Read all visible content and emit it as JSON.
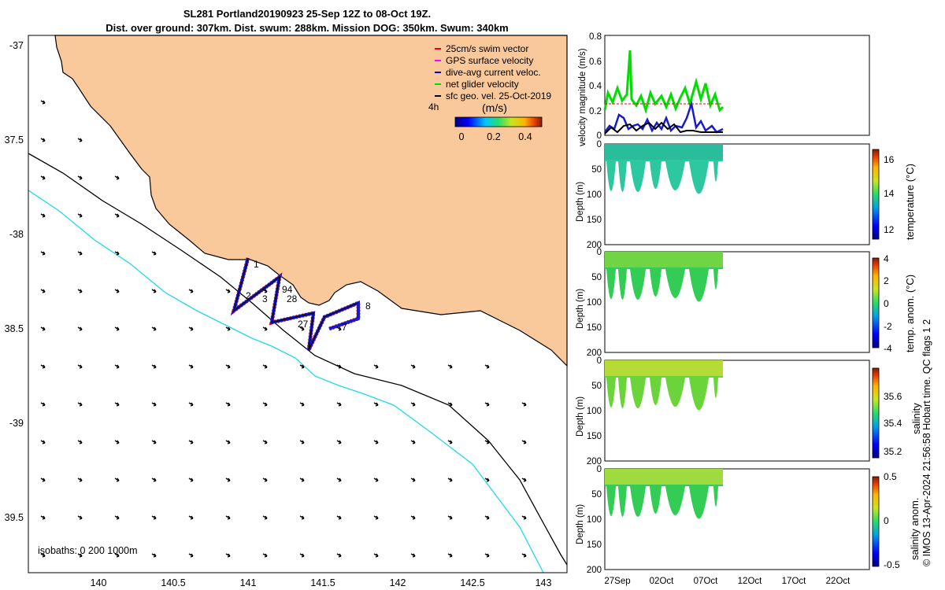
{
  "title": {
    "line1": "SL281 Portland20190923 25-Sep 12Z to 08-Oct 19Z.",
    "line2": "Dist. over ground: 307km. Dist. swum: 288km. Mission DOG: 350km. Swum: 340km"
  },
  "map": {
    "lat_ticks": [
      "-37",
      "37.5",
      "-38",
      "38.5",
      "-39",
      "39.5"
    ],
    "lon_ticks": [
      "140",
      "140.5",
      "141",
      "141.5",
      "142",
      "142.5",
      "143"
    ],
    "isobaths_label": "isobaths: 0   200  1000m",
    "legend": [
      {
        "label": "25cm/s swim vector",
        "color": "#e8000b"
      },
      {
        "label": "GPS surface velocity",
        "color": "#ff00ff"
      },
      {
        "label": "dive-avg current veloc.",
        "color": "#0000cc"
      },
      {
        "label": "net glider velocity",
        "color": "#00dd00"
      },
      {
        "label": "sfc geo. vel. 25-Oct-2019",
        "color": "#000000"
      }
    ],
    "colorbar": {
      "prefix": "4h",
      "units": "(m/s)",
      "ticks": [
        "0",
        "0.2",
        "0.4"
      ]
    },
    "track_labels": [
      "1",
      "2",
      "3",
      "94",
      "28",
      "27",
      "7",
      "8"
    ],
    "colors": {
      "land": "#f9c89b",
      "ocean": "#ffffff",
      "isobath_200": "#000000",
      "isobath_1000": "#22d8e8"
    }
  },
  "panels": {
    "velocity": {
      "ylabel": "velocity magnitude (m/s)",
      "yticks": [
        "0",
        "0.2",
        "0.4",
        "0.6",
        "0.8"
      ]
    },
    "depth_ylabel": "Depth (m)",
    "depth_ticks": [
      "0",
      "50",
      "100",
      "150",
      "200"
    ],
    "xticks": [
      "27Sep",
      "02Oct",
      "07Oct",
      "12Oct",
      "17Oct",
      "22Oct"
    ],
    "temperature": {
      "clabel": "temperature (°C)",
      "cticks": [
        "16",
        "14",
        "12"
      ]
    },
    "temp_anom": {
      "clabel": "temp. anom. (°C)",
      "cticks": [
        "4",
        "2",
        "0",
        "-2",
        "-4"
      ]
    },
    "salinity": {
      "clabel": "salinity",
      "cticks": [
        "35.6",
        "35.4",
        "35.2"
      ]
    },
    "sal_anom": {
      "clabel": "salinity anom.",
      "cticks": [
        "0.5",
        "0",
        "-0.5"
      ]
    }
  },
  "footer": "© IMOS 13-Apr-2024 21:56:58 Hobart time. QC flags 1  2"
}
